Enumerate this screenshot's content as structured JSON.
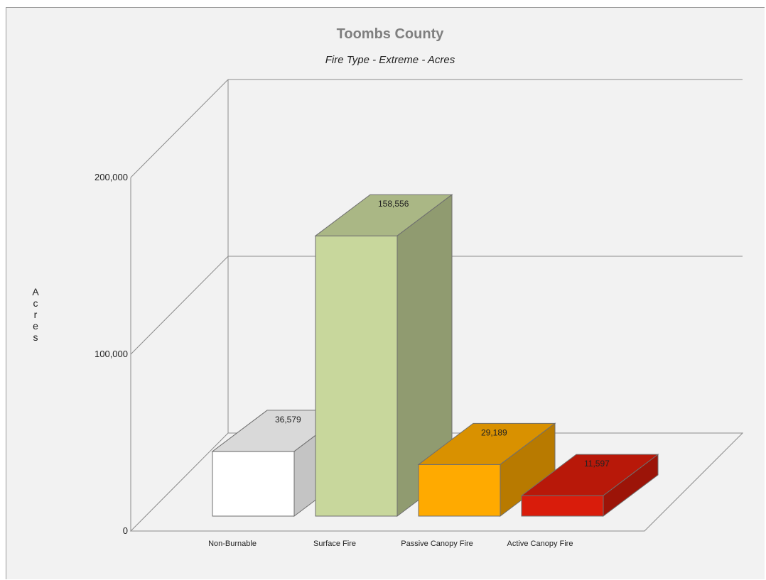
{
  "chart_data": {
    "type": "bar",
    "title": "Toombs County",
    "subtitle": "Fire Type - Extreme - Acres",
    "ylabel": "Acres",
    "categories": [
      "Non-Burnable",
      "Surface Fire",
      "Passive Canopy Fire",
      "Active Canopy Fire"
    ],
    "values": [
      36579,
      158556,
      29189,
      11597
    ],
    "value_labels": [
      "36,579",
      "158,556",
      "29,189",
      "11,597"
    ],
    "colors": [
      "#ffffff",
      "#c8d79c",
      "#ffaa00",
      "#d91c0b"
    ],
    "ylim": [
      0,
      200000
    ],
    "yticks": [
      0,
      100000,
      200000
    ],
    "ytick_labels": [
      "0",
      "100,000",
      "200,000"
    ],
    "grid": true,
    "style": "3d"
  }
}
